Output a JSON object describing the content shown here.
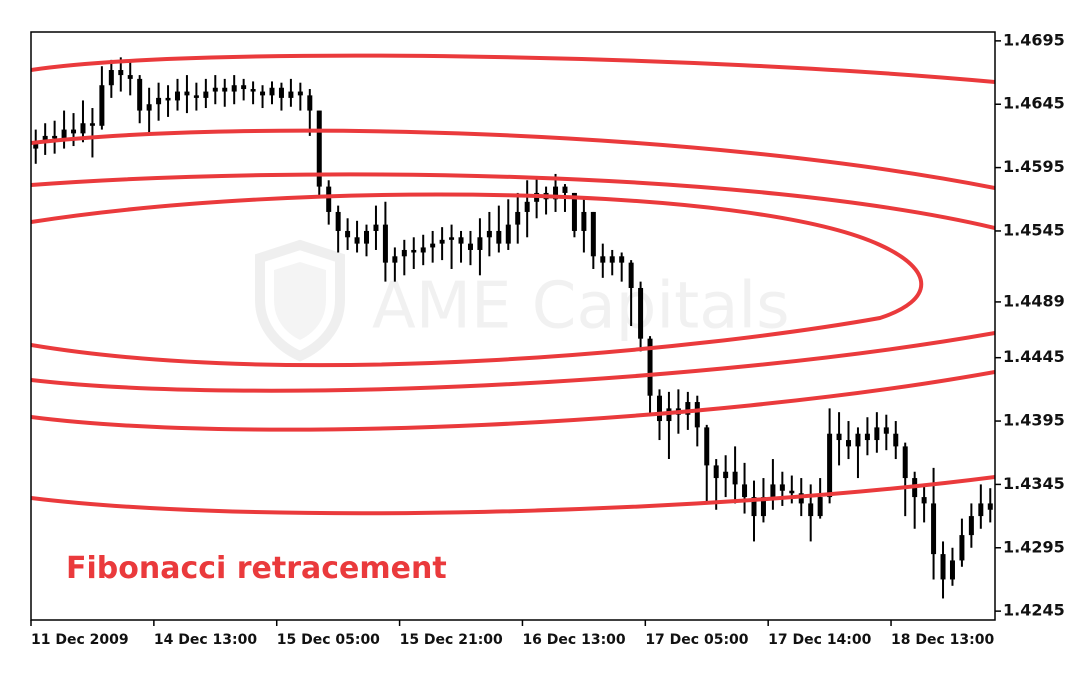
{
  "chart_data": {
    "type": "candlestick",
    "annotation": "Fibonacci retracement",
    "annotation_color": "#ea3a3c",
    "watermark": "AME Capitals",
    "color": "#000000",
    "categories": [
      "11 Dec 2009",
      null,
      null,
      null,
      null,
      null,
      null,
      null,
      null,
      null,
      null,
      null,
      null,
      "14 Dec 13:00",
      null,
      null,
      null,
      null,
      null,
      null,
      null,
      null,
      null,
      null,
      null,
      null,
      "15 Dec 05:00",
      null,
      null,
      null,
      null,
      null,
      null,
      null,
      null,
      null,
      null,
      null,
      null,
      "15 Dec 21:00",
      null,
      null,
      null,
      null,
      null,
      null,
      null,
      null,
      null,
      null,
      null,
      null,
      "16 Dec 13:00",
      null,
      null,
      null,
      null,
      null,
      null,
      null,
      null,
      null,
      null,
      null,
      null,
      "17 Dec 05:00",
      null,
      null,
      null,
      null,
      null,
      null,
      null,
      null,
      null,
      null,
      null,
      null,
      "17 Dec 14:00",
      null,
      null,
      null,
      null,
      null,
      null,
      null,
      null,
      null,
      null,
      null,
      null,
      "18 Dec 13:00",
      null,
      null,
      null,
      null,
      null,
      null,
      null,
      null,
      null,
      null
    ],
    "open": [
      1.461,
      1.4615,
      1.462,
      1.4618,
      1.4625,
      1.4622,
      1.463,
      1.4628,
      1.466,
      1.4672,
      1.4668,
      1.4665,
      1.464,
      1.4645,
      1.465,
      1.4648,
      1.4655,
      1.4652,
      1.465,
      1.4655,
      1.4658,
      1.4655,
      1.466,
      1.4657,
      1.4655,
      1.4652,
      1.4658,
      1.465,
      1.4655,
      1.4652,
      1.464,
      1.458,
      1.456,
      1.4545,
      1.454,
      1.4535,
      1.4545,
      1.455,
      1.452,
      1.4525,
      1.453,
      1.4528,
      1.4532,
      1.4535,
      1.4538,
      1.454,
      1.4535,
      1.453,
      1.454,
      1.4545,
      1.4535,
      1.455,
      1.456,
      1.4568,
      1.4575,
      1.457,
      1.458,
      1.4575,
      1.4545,
      1.456,
      1.4525,
      1.452,
      1.4525,
      1.452,
      1.45,
      1.446,
      1.4415,
      1.4395,
      1.4405,
      1.44,
      1.441,
      1.439,
      1.436,
      1.435,
      1.4355,
      1.4345,
      1.4335,
      1.432,
      1.4335,
      1.4345,
      1.434,
      1.4338,
      1.433,
      1.432,
      1.4335,
      1.4385,
      1.438,
      1.4375,
      1.4385,
      1.438,
      1.439,
      1.4385,
      1.4375,
      1.435,
      1.4335,
      1.433,
      1.429,
      1.427,
      1.4285,
      1.4305,
      1.432,
      1.433
    ],
    "high": [
      1.4625,
      1.463,
      1.4632,
      1.464,
      1.4638,
      1.4648,
      1.4642,
      1.4675,
      1.468,
      1.4682,
      1.4678,
      1.4668,
      1.4658,
      1.4662,
      1.466,
      1.4665,
      1.4668,
      1.4662,
      1.4665,
      1.4668,
      1.4665,
      1.4668,
      1.4665,
      1.4663,
      1.466,
      1.4663,
      1.4662,
      1.4665,
      1.4662,
      1.4657,
      1.464,
      1.4585,
      1.4565,
      1.4555,
      1.4553,
      1.455,
      1.4565,
      1.4568,
      1.4532,
      1.4538,
      1.454,
      1.4542,
      1.4545,
      1.4548,
      1.455,
      1.4545,
      1.4545,
      1.4555,
      1.456,
      1.4565,
      1.457,
      1.4575,
      1.4585,
      1.4588,
      1.458,
      1.459,
      1.4582,
      1.4575,
      1.4572,
      1.456,
      1.4535,
      1.453,
      1.4528,
      1.4522,
      1.4505,
      1.4462,
      1.442,
      1.4418,
      1.442,
      1.4418,
      1.4415,
      1.4392,
      1.4365,
      1.4368,
      1.4375,
      1.4362,
      1.4348,
      1.435,
      1.4365,
      1.4355,
      1.4352,
      1.435,
      1.4345,
      1.435,
      1.4405,
      1.4402,
      1.4395,
      1.439,
      1.4398,
      1.4402,
      1.44,
      1.4395,
      1.4378,
      1.4355,
      1.4345,
      1.4358,
      1.43,
      1.4295,
      1.4318,
      1.433,
      1.4345,
      1.4342
    ],
    "low": [
      1.4598,
      1.4605,
      1.4606,
      1.461,
      1.4612,
      1.4615,
      1.4603,
      1.4625,
      1.465,
      1.4655,
      1.4652,
      1.463,
      1.4622,
      1.4632,
      1.4635,
      1.464,
      1.4638,
      1.464,
      1.4642,
      1.4645,
      1.4643,
      1.4645,
      1.4648,
      1.4645,
      1.4642,
      1.4645,
      1.464,
      1.4643,
      1.464,
      1.462,
      1.4572,
      1.455,
      1.4528,
      1.453,
      1.4528,
      1.4525,
      1.453,
      1.4505,
      1.4505,
      1.451,
      1.4515,
      1.4518,
      1.452,
      1.4522,
      1.4515,
      1.452,
      1.4518,
      1.451,
      1.4525,
      1.4528,
      1.453,
      1.4535,
      1.454,
      1.4555,
      1.4558,
      1.456,
      1.456,
      1.454,
      1.4528,
      1.4515,
      1.4508,
      1.451,
      1.4505,
      1.447,
      1.445,
      1.44,
      1.438,
      1.4365,
      1.4385,
      1.4388,
      1.4375,
      1.433,
      1.4325,
      1.4335,
      1.433,
      1.4322,
      1.43,
      1.4315,
      1.4325,
      1.4328,
      1.433,
      1.432,
      1.43,
      1.4318,
      1.433,
      1.436,
      1.4365,
      1.435,
      1.4368,
      1.437,
      1.4372,
      1.4365,
      1.432,
      1.431,
      1.4315,
      1.427,
      1.4255,
      1.4265,
      1.428,
      1.4295,
      1.431,
      1.4315
    ],
    "close": [
      1.4615,
      1.462,
      1.4618,
      1.4625,
      1.4622,
      1.463,
      1.4628,
      1.466,
      1.4672,
      1.4668,
      1.4665,
      1.464,
      1.4645,
      1.465,
      1.4648,
      1.4655,
      1.4652,
      1.465,
      1.4655,
      1.4658,
      1.4655,
      1.466,
      1.4657,
      1.4655,
      1.4652,
      1.4658,
      1.465,
      1.4655,
      1.4652,
      1.464,
      1.458,
      1.456,
      1.4545,
      1.454,
      1.4535,
      1.4545,
      1.455,
      1.452,
      1.4525,
      1.453,
      1.4528,
      1.4532,
      1.4535,
      1.4538,
      1.454,
      1.4535,
      1.453,
      1.454,
      1.4545,
      1.4535,
      1.455,
      1.456,
      1.4568,
      1.4575,
      1.457,
      1.458,
      1.4575,
      1.4545,
      1.456,
      1.4525,
      1.452,
      1.4525,
      1.452,
      1.45,
      1.446,
      1.4415,
      1.4395,
      1.4405,
      1.44,
      1.441,
      1.439,
      1.436,
      1.435,
      1.4355,
      1.4345,
      1.4335,
      1.432,
      1.4335,
      1.4345,
      1.434,
      1.4338,
      1.433,
      1.432,
      1.4335,
      1.4385,
      1.438,
      1.4375,
      1.4385,
      1.438,
      1.439,
      1.4385,
      1.4375,
      1.435,
      1.4335,
      1.433,
      1.429,
      1.427,
      1.4285,
      1.4305,
      1.432,
      1.433,
      1.4325
    ],
    "ylim": [
      1.4238,
      1.4702
    ],
    "yticks": [
      1.4695,
      1.4645,
      1.4595,
      1.4545,
      1.4489,
      1.4445,
      1.4395,
      1.4345,
      1.4295,
      1.4245
    ]
  }
}
